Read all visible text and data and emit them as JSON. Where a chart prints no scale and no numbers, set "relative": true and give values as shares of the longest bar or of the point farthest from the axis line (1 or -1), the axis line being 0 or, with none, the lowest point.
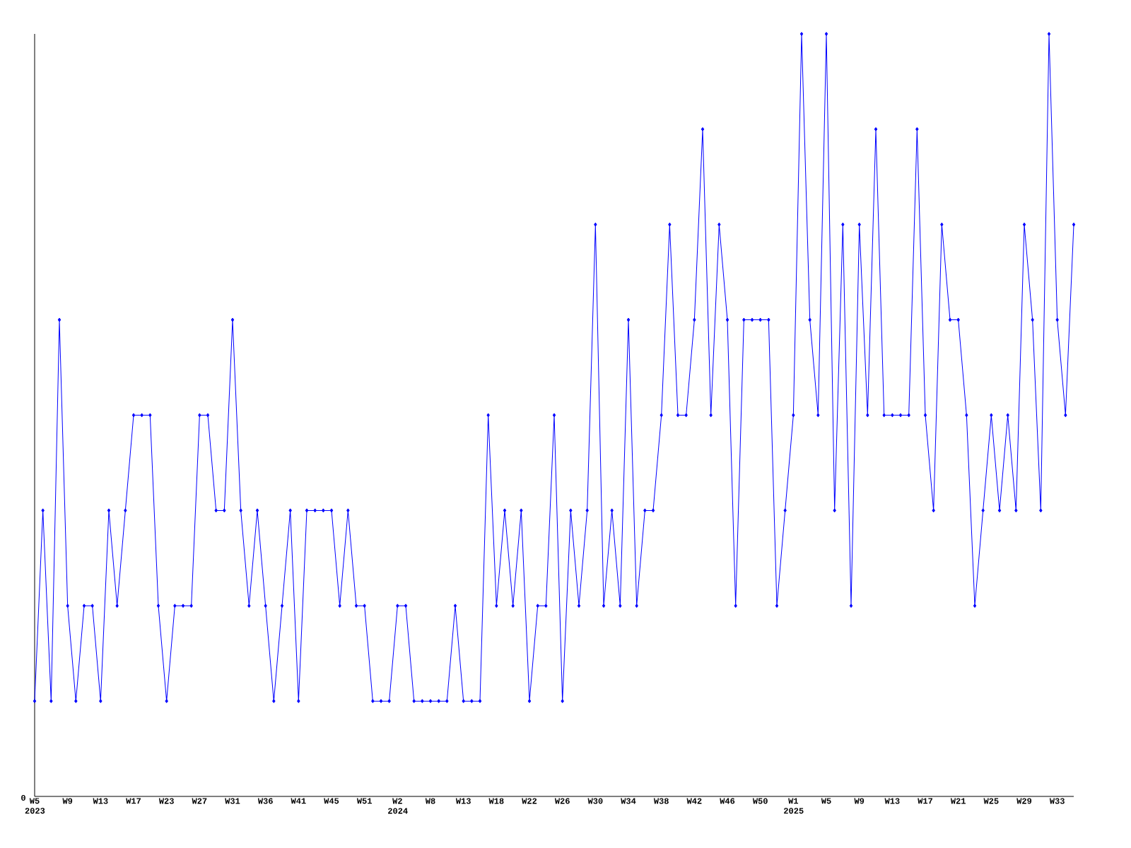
{
  "chart_data": {
    "type": "line",
    "relative": true,
    "marker": "diamond",
    "grid": false,
    "annotations": [
      "0"
    ],
    "categories": [
      "W5 2023",
      null,
      null,
      null,
      "W9",
      null,
      null,
      null,
      "W13",
      null,
      null,
      null,
      "W17",
      null,
      null,
      null,
      "W23",
      null,
      null,
      null,
      "W27",
      null,
      null,
      null,
      "W31",
      null,
      null,
      null,
      "W36",
      null,
      null,
      null,
      "W41",
      null,
      null,
      null,
      "W45",
      null,
      null,
      null,
      "W51",
      null,
      null,
      null,
      "W2 2024",
      null,
      null,
      null,
      "W8",
      null,
      null,
      null,
      "W13",
      null,
      null,
      null,
      "W18",
      null,
      null,
      null,
      "W22",
      null,
      null,
      null,
      "W26",
      null,
      null,
      null,
      "W30",
      null,
      null,
      null,
      "W34",
      null,
      null,
      null,
      "W38",
      null,
      null,
      null,
      "W42",
      null,
      null,
      null,
      "W46",
      null,
      null,
      null,
      "W50",
      null,
      null,
      null,
      "W1 2025",
      null,
      null,
      null,
      "W5",
      null,
      null,
      null,
      "W9",
      null,
      null,
      null,
      "W13",
      null,
      null,
      null,
      "W17",
      null,
      null,
      null,
      "W21",
      null,
      null,
      null,
      "W25",
      null,
      null,
      null,
      "W29",
      null,
      null,
      null,
      "W33",
      null,
      null
    ],
    "series": [
      {
        "color": "#0000ff",
        "values": [
          0.125,
          0.375,
          0.125,
          0.625,
          0.25,
          0.125,
          0.25,
          0.25,
          0.125,
          0.375,
          0.25,
          0.375,
          0.5,
          0.5,
          0.5,
          0.25,
          0.125,
          0.25,
          0.25,
          0.25,
          0.5,
          0.5,
          0.375,
          0.375,
          0.625,
          0.375,
          0.25,
          0.375,
          0.25,
          0.125,
          0.25,
          0.375,
          0.125,
          0.375,
          0.375,
          0.375,
          0.375,
          0.25,
          0.375,
          0.25,
          0.25,
          0.125,
          0.125,
          0.125,
          0.25,
          0.25,
          0.125,
          0.125,
          0.125,
          0.125,
          0.125,
          0.25,
          0.125,
          0.125,
          0.125,
          0.5,
          0.25,
          0.375,
          0.25,
          0.375,
          0.125,
          0.25,
          0.25,
          0.5,
          0.125,
          0.375,
          0.25,
          0.375,
          0.75,
          0.25,
          0.375,
          0.25,
          0.625,
          0.25,
          0.375,
          0.375,
          0.5,
          0.75,
          0.5,
          0.5,
          0.625,
          0.875,
          0.5,
          0.75,
          0.625,
          0.25,
          0.625,
          0.625,
          0.625,
          0.625,
          0.25,
          0.375,
          0.5,
          1,
          0.625,
          0.5,
          1,
          0.375,
          0.75,
          0.25,
          0.75,
          0.5,
          0.875,
          0.5,
          0.5,
          0.5,
          0.5,
          0.875,
          0.5,
          0.375,
          0.75,
          0.625,
          0.625,
          0.5,
          0.25,
          0.375,
          0.5,
          0.375,
          0.5,
          0.375,
          0.75,
          0.625,
          0.375,
          1,
          0.625,
          0.5,
          0.75
        ]
      }
    ]
  }
}
